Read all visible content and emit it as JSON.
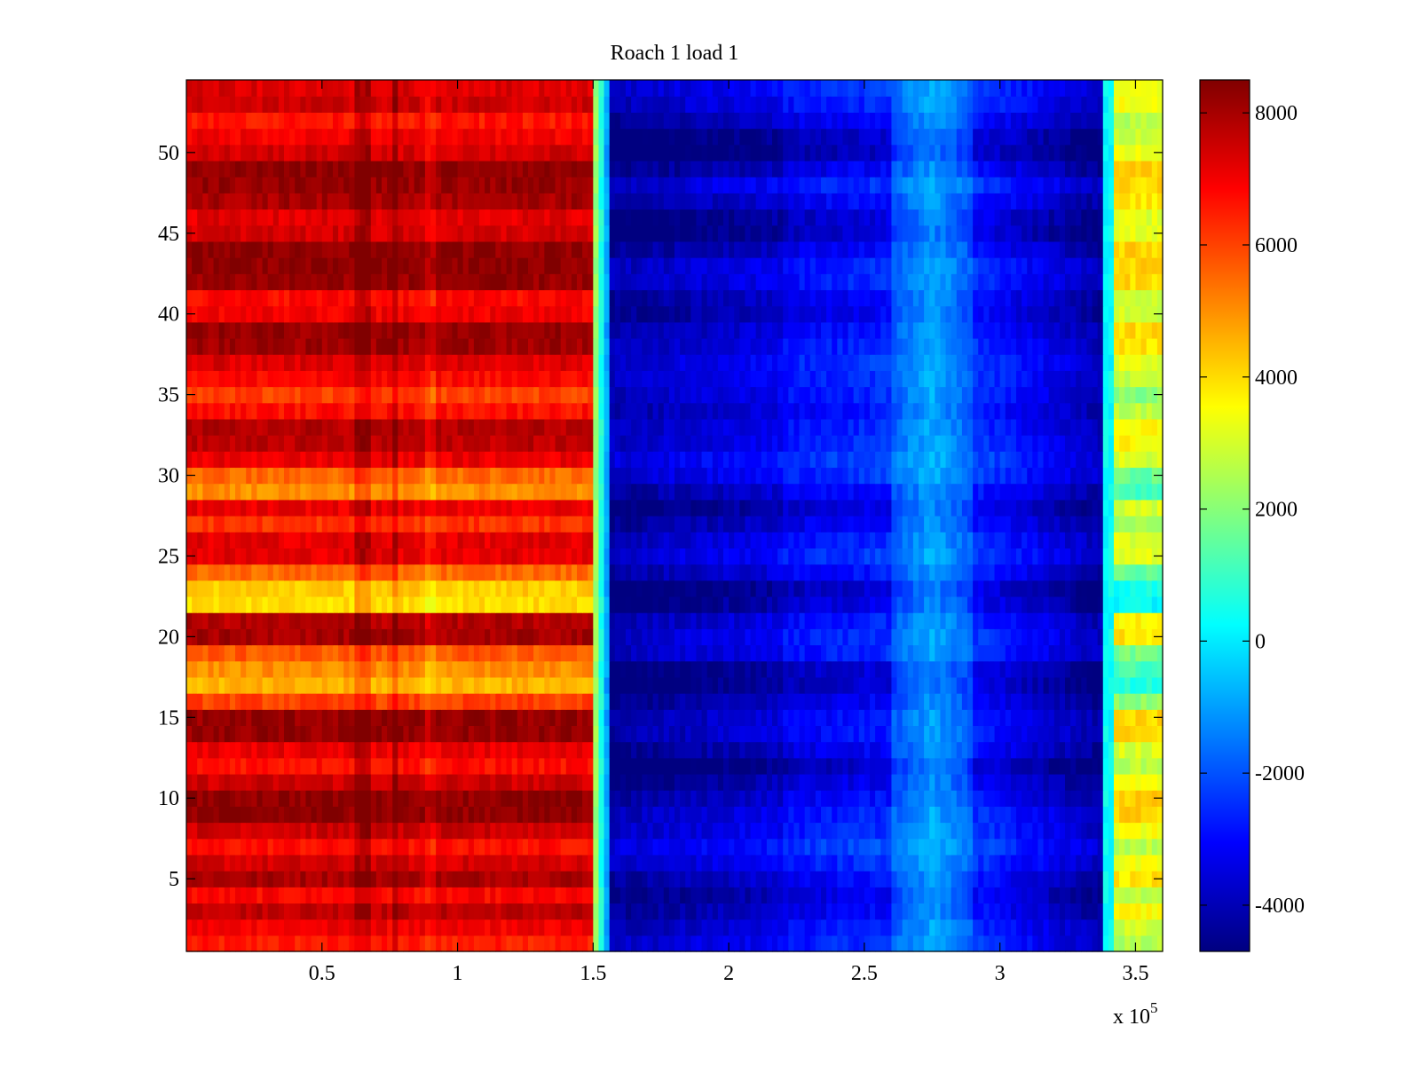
{
  "chart_data": {
    "type": "heatmap",
    "title": "Roach 1 load 1",
    "xlabel": "",
    "ylabel": "",
    "x_exponent_label": "x 10",
    "x_exponent_power": "5",
    "xlim": [
      0,
      3.6
    ],
    "ylim": [
      0.5,
      54.5
    ],
    "x_units_multiplier": 100000,
    "xticks": [
      0.5,
      1,
      1.5,
      2,
      2.5,
      3,
      3.5
    ],
    "xtick_labels": [
      "0.5",
      "1",
      "1.5",
      "2",
      "2.5",
      "3",
      "3.5"
    ],
    "yticks": [
      5,
      10,
      15,
      20,
      25,
      30,
      35,
      40,
      45,
      50
    ],
    "ytick_labels": [
      "5",
      "10",
      "15",
      "20",
      "25",
      "30",
      "35",
      "40",
      "45",
      "50"
    ],
    "rows": 54,
    "row_range": [
      1,
      54
    ],
    "colormap": "jet",
    "colorbar": {
      "range": [
        -4700,
        8500
      ],
      "ticks": [
        -4000,
        -2000,
        0,
        2000,
        4000,
        6000,
        8000
      ],
      "tick_labels": [
        "-4000",
        "-2000",
        "0",
        "2000",
        "4000",
        "6000",
        "8000"
      ],
      "placement": "right"
    },
    "column_segments": [
      {
        "x_from": 0.0,
        "x_to": 1.5,
        "typical_value": 6500,
        "description_value_range": [
          3500,
          8500
        ]
      },
      {
        "x_from": 1.5,
        "x_to": 1.57,
        "typical_value": 0
      },
      {
        "x_from": 1.57,
        "x_to": 2.6,
        "typical_value": -3200,
        "description_value_range": [
          -4700,
          -1500
        ]
      },
      {
        "x_from": 2.6,
        "x_to": 2.9,
        "typical_value": -1000,
        "description_value_range": [
          -1800,
          0
        ]
      },
      {
        "x_from": 2.9,
        "x_to": 3.38,
        "typical_value": -3000,
        "description_value_range": [
          -4500,
          -1500
        ]
      },
      {
        "x_from": 3.38,
        "x_to": 3.6,
        "typical_value": 2800,
        "description_value_range": [
          1000,
          5500
        ]
      }
    ],
    "row_offsets_left_block": [
      0,
      500,
      1200,
      300,
      1500,
      900,
      200,
      1000,
      1800,
      1800,
      1000,
      200,
      600,
      1700,
      1700,
      -500,
      -2000,
      -1500,
      -800,
      1500,
      1300,
      -2500,
      -2300,
      -1000,
      700,
      700,
      -300,
      600,
      -1500,
      -1000,
      600,
      1200,
      1300,
      200,
      -500,
      300,
      800,
      1600,
      1700,
      500,
      300,
      1700,
      1800,
      1800,
      900,
      700,
      1500,
      1700,
      1800,
      900,
      500,
      100,
      1000,
      800
    ],
    "row_offsets_right_block": [
      -300,
      -500,
      -800,
      -1000,
      -700,
      -300,
      0,
      -300,
      -400,
      -700,
      -1000,
      -1400,
      -900,
      -600,
      -600,
      -900,
      -1300,
      -1200,
      -400,
      -300,
      -500,
      -1100,
      -1300,
      -600,
      -200,
      -400,
      -800,
      -1100,
      -700,
      -200,
      0,
      -300,
      -400,
      -600,
      -400,
      -300,
      -200,
      -400,
      -600,
      -900,
      -800,
      -400,
      -400,
      -800,
      -1300,
      -1200,
      -700,
      -300,
      -900,
      -1500,
      -1300,
      -800,
      -400,
      -200
    ]
  }
}
